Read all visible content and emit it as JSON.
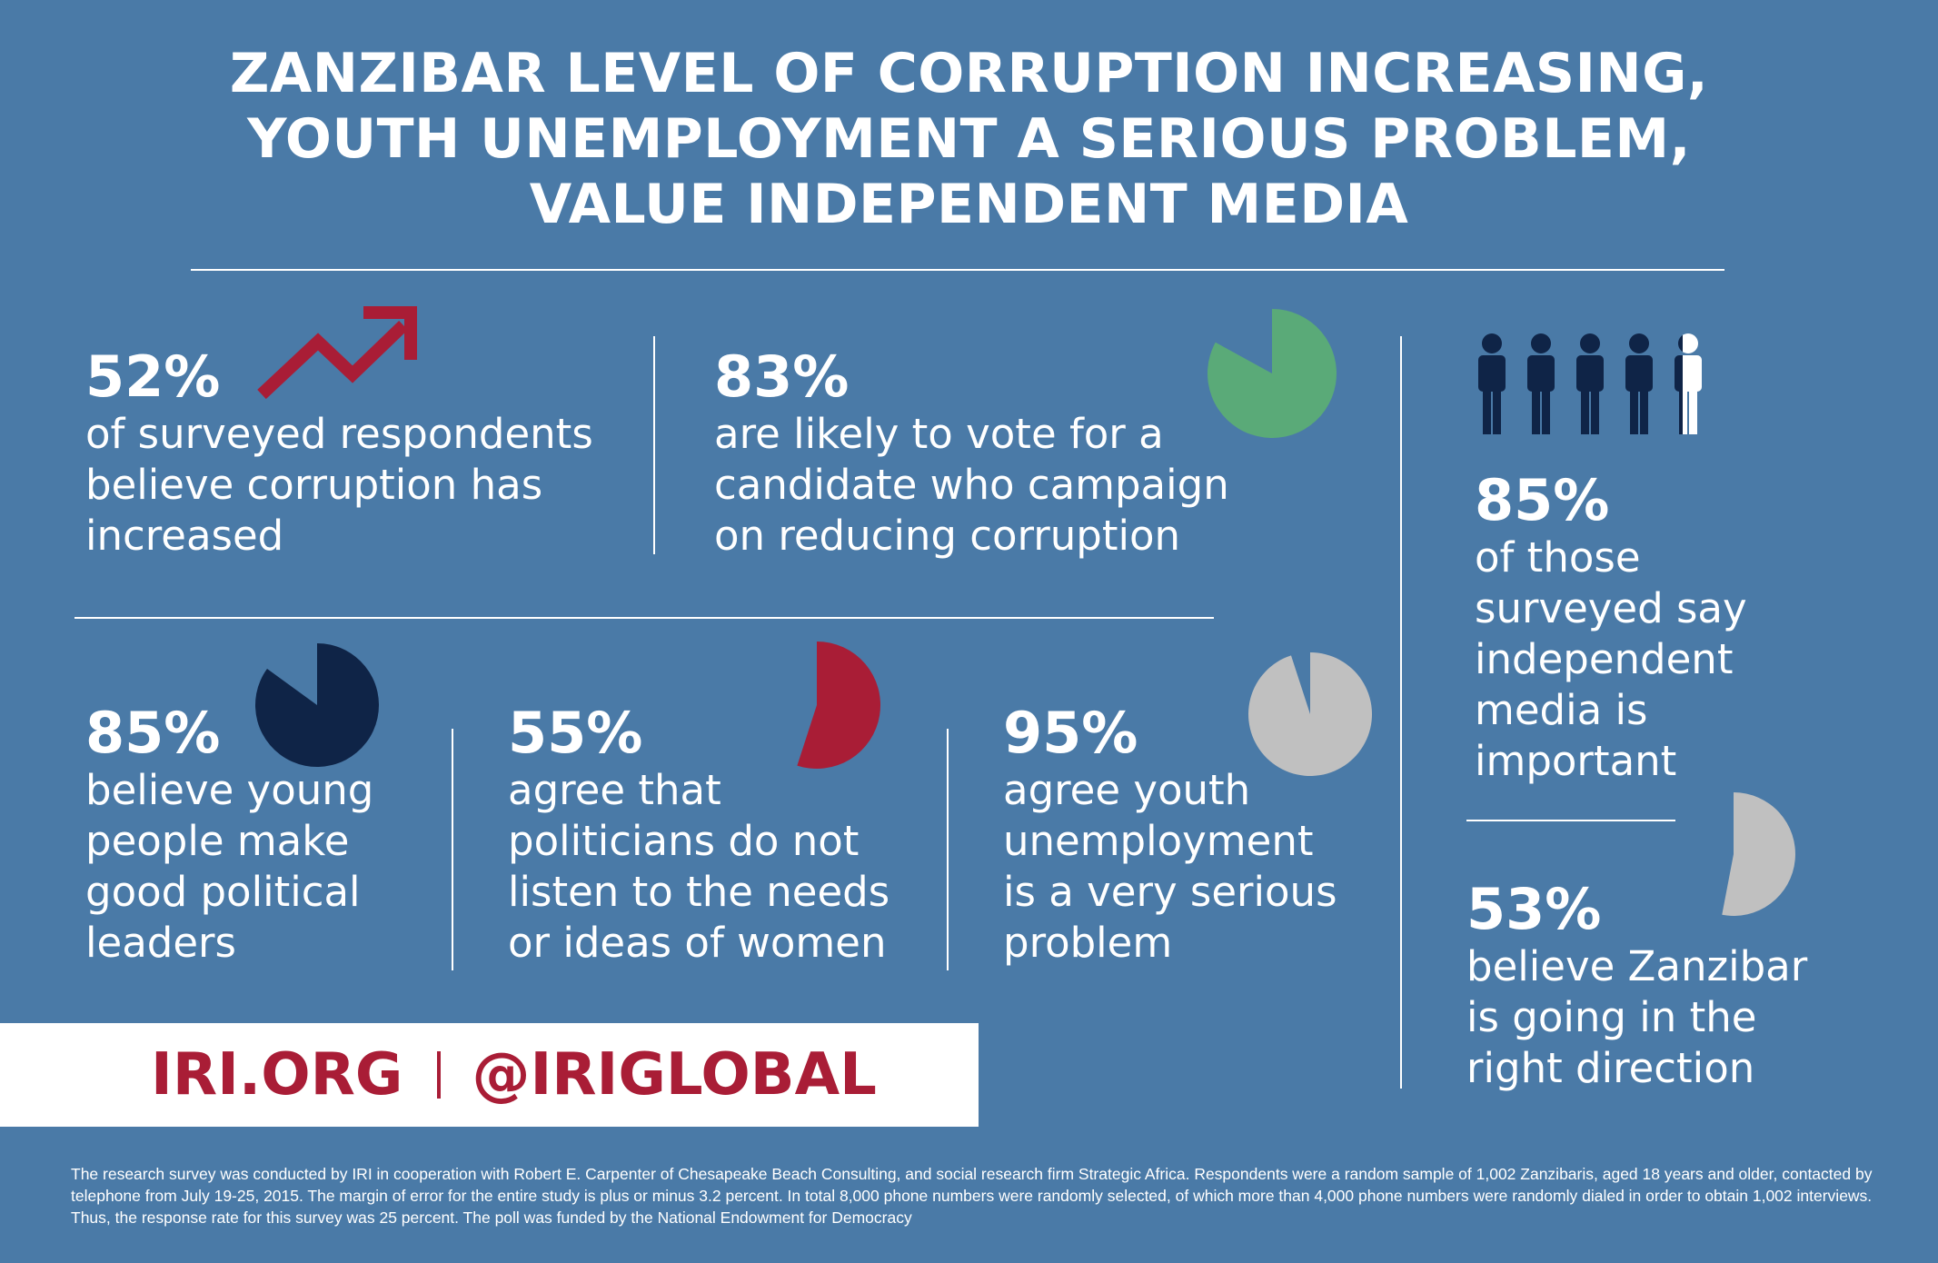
{
  "title_lines": [
    "ZANZIBAR LEVEL OF CORRUPTION INCREASING,",
    "YOUTH UNEMPLOYMENT A SERIOUS PROBLEM,",
    "VALUE INDEPENDENT MEDIA"
  ],
  "colors": {
    "background": "#4a7aa7",
    "red": "#a91d36",
    "green": "#5aaa78",
    "navy": "#0f2447",
    "gray": "#c0c0c0",
    "white": "#ffffff"
  },
  "stats": [
    {
      "id": "corruption",
      "value": "52%",
      "text": "of surveyed respondents\nbelieve corruption has\nincreased",
      "icon": "trend-up-arrow-icon"
    },
    {
      "id": "vote",
      "value": "83%",
      "text": "are likely to vote for a\ncandidate who campaign\non reducing corruption"
    },
    {
      "id": "youth-leaders",
      "value": "85%",
      "text": "believe young\npeople make\ngood political\nleaders"
    },
    {
      "id": "women",
      "value": "55%",
      "text": "agree that\npoliticians do not\nlisten to the needs\nor ideas of women"
    },
    {
      "id": "unemployment",
      "value": "95%",
      "text": "agree youth\nunemployment\nis a very serious\nproblem"
    },
    {
      "id": "media",
      "value": "85%",
      "text": "of those\nsurveyed say\nindependent\nmedia is\nimportant",
      "icon": "people-icon"
    },
    {
      "id": "direction",
      "value": "53%",
      "text": "believe Zanzibar\nis going in the\nright direction"
    }
  ],
  "chart_data": {
    "type": "pie",
    "series": [
      {
        "name": "are likely to vote for a candidate who campaign on reducing corruption",
        "value": 83,
        "color": "#5aaa78"
      },
      {
        "name": "believe young people make good political leaders",
        "value": 85,
        "color": "#0f2447"
      },
      {
        "name": "agree that politicians do not listen to the needs or ideas of women",
        "value": 55,
        "color": "#a91d36"
      },
      {
        "name": "agree youth unemployment is a very serious problem",
        "value": 95,
        "color": "#c0c0c0"
      },
      {
        "name": "believe Zanzibar is going in the right direction",
        "value": 53,
        "color": "#c0c0c0"
      }
    ],
    "people_icon": {
      "filled_of": 5,
      "filled": 4.25
    }
  },
  "banner": {
    "site": "IRI.ORG",
    "handle": "@IRIGLOBAL"
  },
  "footnote": "The research survey was conducted by IRI in cooperation with Robert E. Carpenter of Chesapeake Beach Consulting, and social research firm Strategic Africa.  Respondents were a random sample of 1,002 Zanzibaris, aged 18 years and older, contacted by telephone from July 19-25, 2015.  The margin of error for the entire study is plus or minus 3.2 percent.  In total 8,000 phone numbers were randomly selected, of which more than 4,000 phone numbers were randomly dialed in order to obtain 1,002 interviews.  Thus, the response rate for this survey was 25 percent. The poll was funded by the National Endowment for Democracy"
}
